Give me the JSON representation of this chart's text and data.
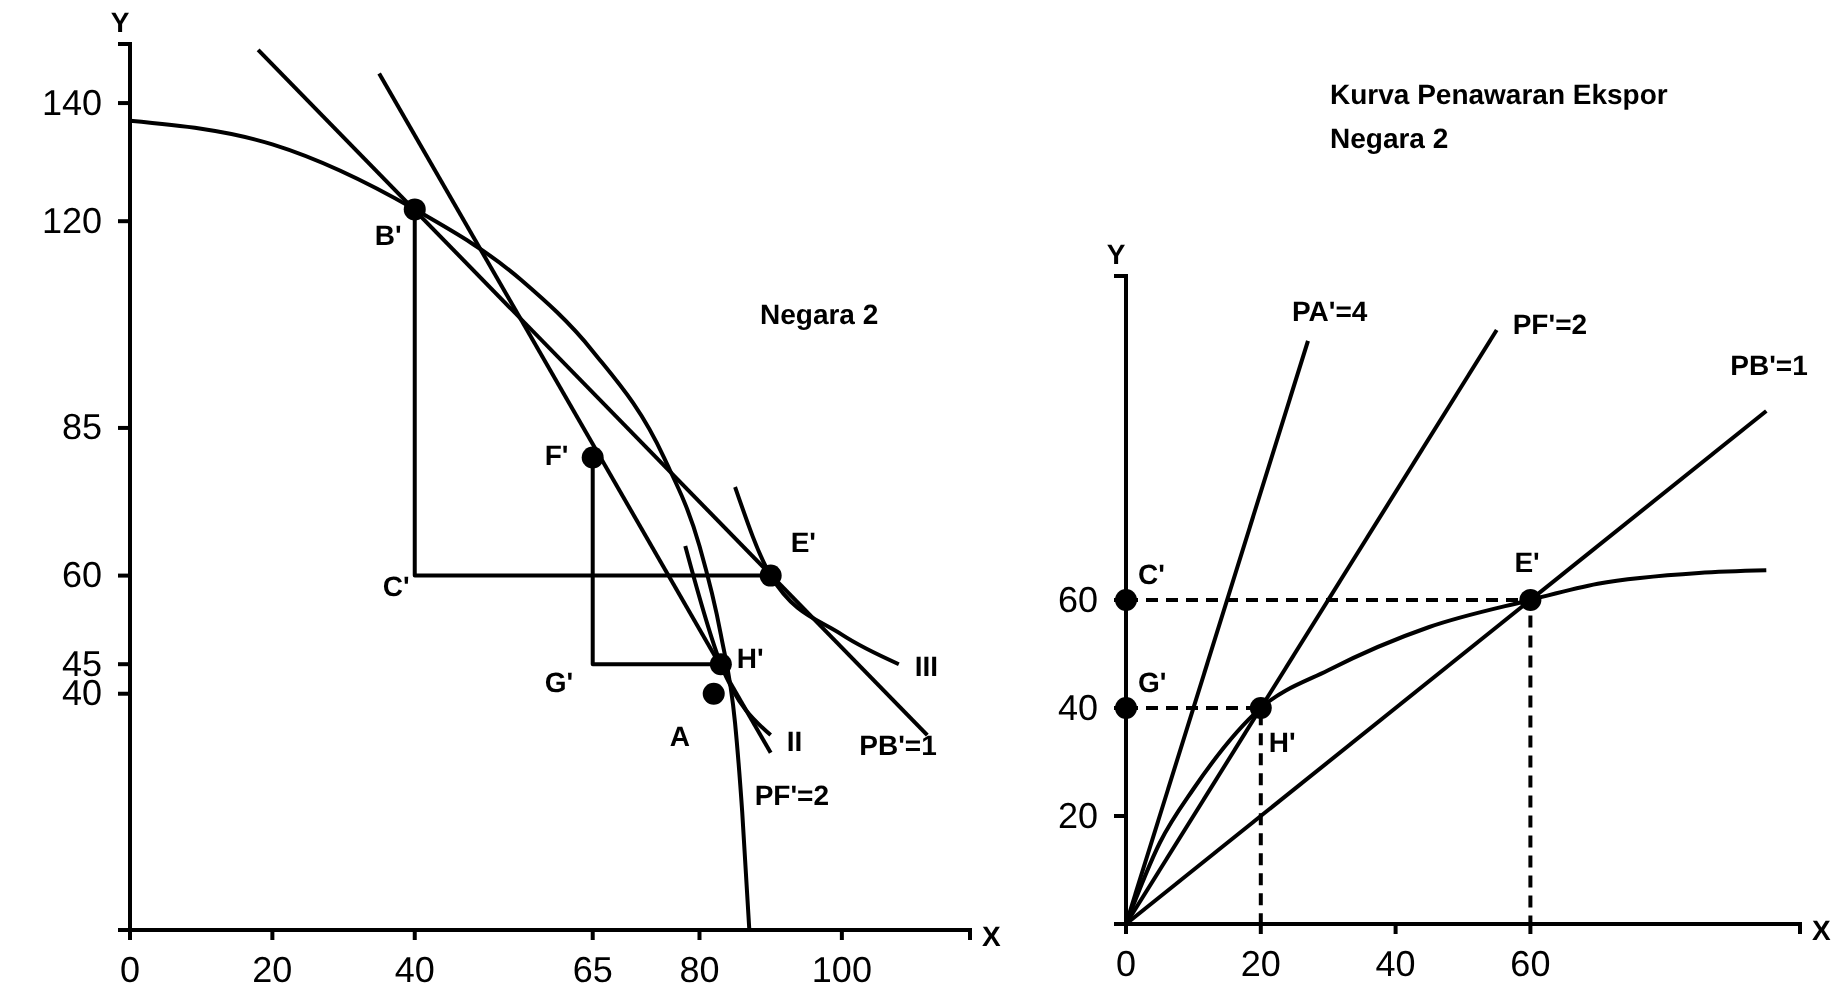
{
  "chart_data": [
    {
      "type": "line",
      "title": "Negara 2",
      "xlabel": "X",
      "ylabel": "Y",
      "xlim": [
        0,
        118
      ],
      "ylim": [
        0,
        150
      ],
      "xticks": [
        0,
        20,
        40,
        65,
        80,
        100
      ],
      "yticks": [
        40,
        45,
        60,
        85,
        120,
        140
      ],
      "series": [
        {
          "type": "line",
          "color": "#000000",
          "x": [
            0,
            20,
            40,
            55,
            65,
            75,
            80,
            83,
            85,
            86,
            87
          ],
          "values": [
            137,
            133,
            122,
            110,
            98,
            80,
            65,
            50,
            35,
            20,
            0
          ]
        },
        {
          "type": "line",
          "name": "PB'=1",
          "color": "#000000",
          "x": [
            18,
            112
          ],
          "values": [
            149,
            33
          ]
        },
        {
          "type": "line",
          "name": "PF'=2",
          "color": "#000000",
          "x": [
            35,
            90
          ],
          "values": [
            145,
            30
          ]
        },
        {
          "type": "line",
          "name": "III",
          "color": "#000000",
          "x": [
            85,
            90,
            100,
            108
          ],
          "values": [
            75,
            60,
            50,
            45
          ]
        },
        {
          "type": "line",
          "name": "II",
          "color": "#000000",
          "x": [
            78,
            83,
            90
          ],
          "values": [
            65,
            45,
            33
          ]
        },
        {
          "type": "line",
          "color": "#000000",
          "x": [
            40,
            40,
            90
          ],
          "values": [
            122,
            60,
            60
          ]
        },
        {
          "type": "line",
          "color": "#000000",
          "x": [
            65,
            65,
            83
          ],
          "values": [
            80,
            45,
            45
          ]
        },
        {
          "type": "scatter",
          "marker": "circle",
          "color": "#000000",
          "x": [
            40,
            90,
            65,
            83,
            82
          ],
          "values": [
            122,
            60,
            80,
            45,
            40
          ]
        }
      ],
      "annotations": [
        {
          "text": "B'",
          "x": 40,
          "y": 122
        },
        {
          "text": "C'",
          "x": 40,
          "y": 60
        },
        {
          "text": "E'",
          "x": 90,
          "y": 60
        },
        {
          "text": "F'",
          "x": 65,
          "y": 80
        },
        {
          "text": "G'",
          "x": 65,
          "y": 45
        },
        {
          "text": "H'",
          "x": 83,
          "y": 45
        },
        {
          "text": "A",
          "x": 82,
          "y": 40
        }
      ]
    },
    {
      "type": "line",
      "title": "Kurva Penawaran Ekspor Negara 2",
      "xlabel": "X",
      "ylabel": "Y",
      "xlim": [
        0,
        100
      ],
      "ylim": [
        0,
        120
      ],
      "xticks": [
        0,
        20,
        40,
        60
      ],
      "yticks": [
        20,
        40,
        60
      ],
      "series": [
        {
          "type": "line",
          "name": "PA'=4",
          "color": "#000000",
          "x": [
            0,
            27
          ],
          "values": [
            0,
            108
          ]
        },
        {
          "type": "line",
          "name": "PF'=2",
          "color": "#000000",
          "x": [
            0,
            55
          ],
          "values": [
            0,
            110
          ]
        },
        {
          "type": "line",
          "name": "PB'=1",
          "color": "#000000",
          "x": [
            0,
            95
          ],
          "values": [
            0,
            95
          ]
        },
        {
          "type": "line",
          "color": "#000000",
          "x": [
            0,
            5,
            10,
            20,
            30,
            45,
            60,
            70,
            85,
            95
          ],
          "values": [
            0,
            15,
            25,
            40,
            47,
            55,
            60,
            63,
            65,
            65.5
          ]
        },
        {
          "type": "line",
          "line_style": "dashed",
          "color": "#000000",
          "x": [
            0,
            60,
            60
          ],
          "values": [
            60,
            60,
            0
          ]
        },
        {
          "type": "line",
          "line_style": "dashed",
          "color": "#000000",
          "x": [
            0,
            20,
            20
          ],
          "values": [
            40,
            40,
            0
          ]
        },
        {
          "type": "scatter",
          "marker": "circle",
          "color": "#000000",
          "x": [
            0,
            0,
            20,
            60
          ],
          "values": [
            60,
            40,
            40,
            60
          ]
        }
      ],
      "annotations": [
        {
          "text": "C'",
          "x": 0,
          "y": 60
        },
        {
          "text": "G'",
          "x": 0,
          "y": 40
        },
        {
          "text": "H'",
          "x": 20,
          "y": 40
        },
        {
          "text": "E'",
          "x": 60,
          "y": 60
        }
      ]
    }
  ]
}
